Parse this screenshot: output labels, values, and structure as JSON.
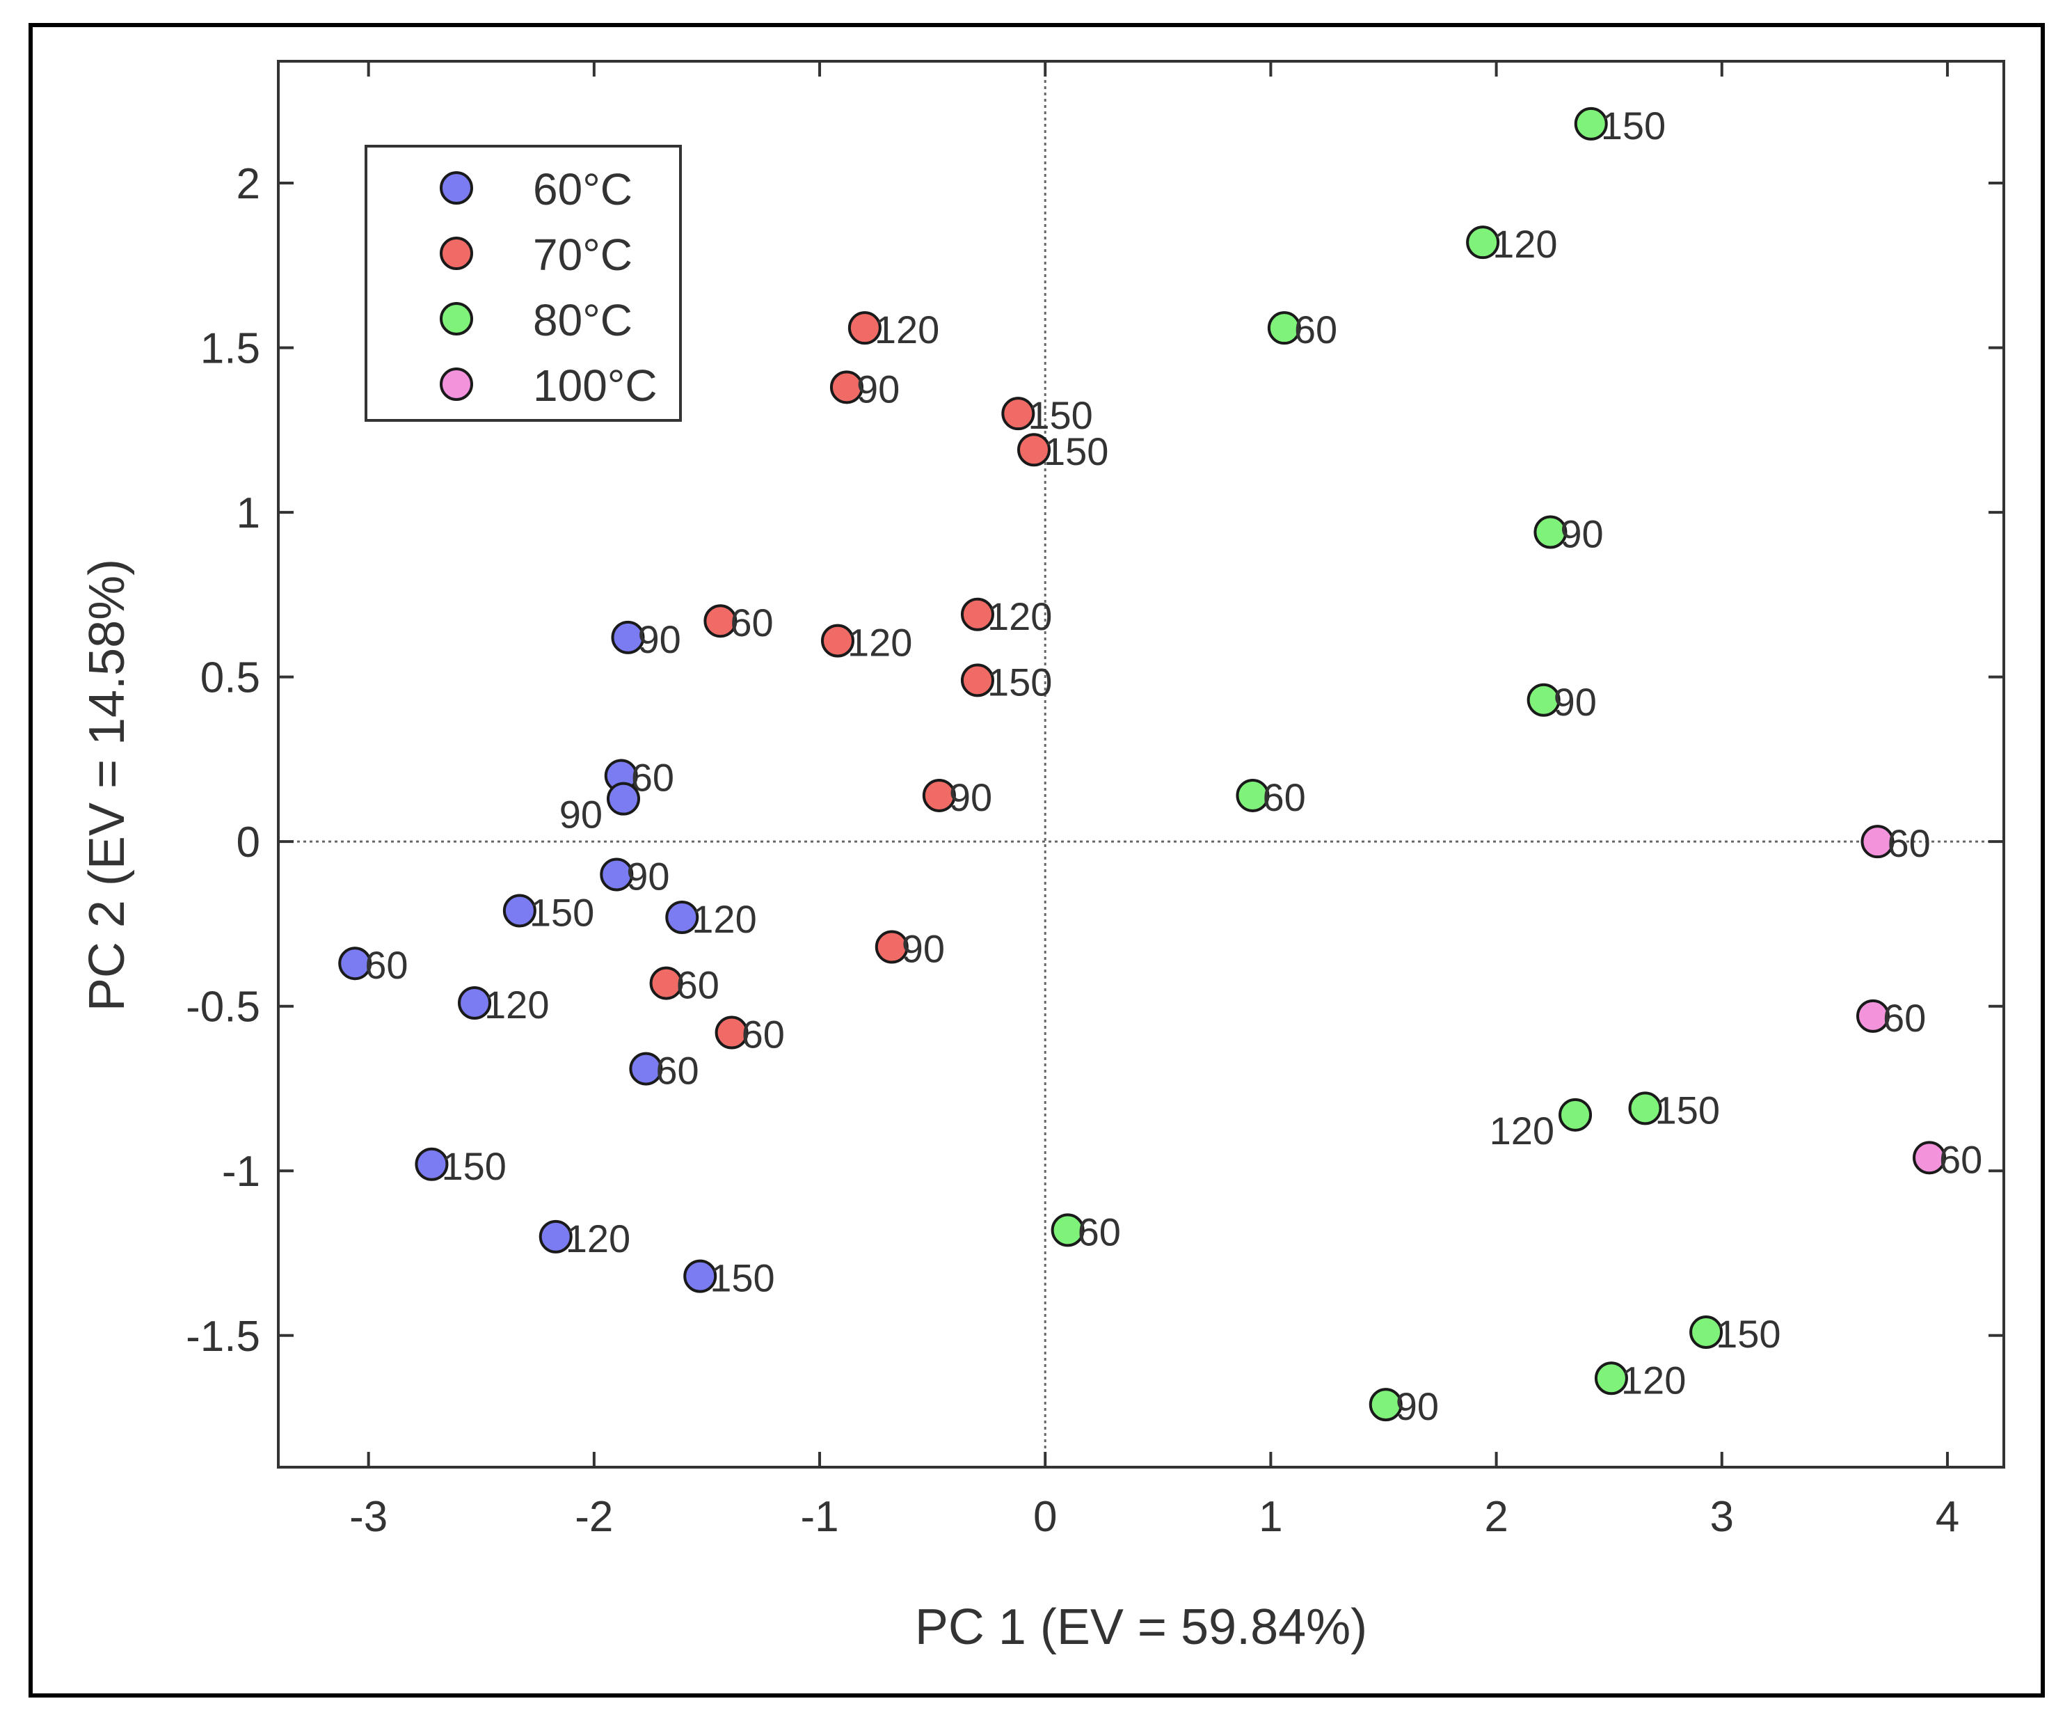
{
  "chart_data": {
    "type": "scatter",
    "xlabel": "PC 1 (EV = 59.84%)",
    "ylabel": "PC 2 (EV = 14.58%)",
    "xlim": [
      -3.4,
      4.25
    ],
    "ylim": [
      -1.9,
      2.37
    ],
    "xticks": [
      -3,
      -2,
      -1,
      0,
      1,
      2,
      3,
      4
    ],
    "yticks": [
      -1.5,
      -1,
      -0.5,
      0,
      0.5,
      1,
      1.5,
      2
    ],
    "xtick_labels": [
      "-3",
      "-2",
      "-1",
      "0",
      "1",
      "2",
      "3",
      "4"
    ],
    "ytick_labels": [
      "-1.5",
      "-1",
      "-0.5",
      "0",
      "0.5",
      "1",
      "1.5",
      "2"
    ],
    "legend_position": "top-left",
    "zero_lines": true,
    "series": [
      {
        "name": "60°C",
        "color": "#7b7bf2",
        "points": [
          {
            "x": -1.85,
            "y": 0.62,
            "label": "90"
          },
          {
            "x": -1.88,
            "y": 0.2,
            "label": "60"
          },
          {
            "x": -1.87,
            "y": 0.13,
            "label": "90"
          },
          {
            "x": -1.9,
            "y": -0.1,
            "label": "90"
          },
          {
            "x": -2.33,
            "y": -0.21,
            "label": "150"
          },
          {
            "x": -1.61,
            "y": -0.23,
            "label": "120"
          },
          {
            "x": -3.06,
            "y": -0.37,
            "label": "60"
          },
          {
            "x": -2.53,
            "y": -0.49,
            "label": "120"
          },
          {
            "x": -1.77,
            "y": -0.69,
            "label": "60"
          },
          {
            "x": -2.72,
            "y": -0.98,
            "label": "150"
          },
          {
            "x": -2.17,
            "y": -1.2,
            "label": "120"
          },
          {
            "x": -1.53,
            "y": -1.32,
            "label": "150"
          }
        ]
      },
      {
        "name": "70°C",
        "color": "#f06b65",
        "points": [
          {
            "x": -0.8,
            "y": 1.56,
            "label": "120"
          },
          {
            "x": -0.88,
            "y": 1.38,
            "label": "90"
          },
          {
            "x": -0.12,
            "y": 1.3,
            "label": "150"
          },
          {
            "x": -0.05,
            "y": 1.19,
            "label": "150"
          },
          {
            "x": -1.44,
            "y": 0.67,
            "label": "60"
          },
          {
            "x": -0.3,
            "y": 0.69,
            "label": "120"
          },
          {
            "x": -0.92,
            "y": 0.61,
            "label": "120"
          },
          {
            "x": -0.3,
            "y": 0.49,
            "label": "150"
          },
          {
            "x": -0.47,
            "y": 0.14,
            "label": "90"
          },
          {
            "x": -0.68,
            "y": -0.32,
            "label": "90"
          },
          {
            "x": -1.68,
            "y": -0.43,
            "label": "60"
          },
          {
            "x": -1.39,
            "y": -0.58,
            "label": "60"
          }
        ]
      },
      {
        "name": "80°C",
        "color": "#7ff27a",
        "points": [
          {
            "x": 2.42,
            "y": 2.18,
            "label": "150"
          },
          {
            "x": 1.94,
            "y": 1.82,
            "label": "120"
          },
          {
            "x": 1.06,
            "y": 1.56,
            "label": "60"
          },
          {
            "x": 2.24,
            "y": 0.94,
            "label": "90"
          },
          {
            "x": 2.21,
            "y": 0.43,
            "label": "90"
          },
          {
            "x": 0.92,
            "y": 0.14,
            "label": "60"
          },
          {
            "x": 2.35,
            "y": -0.83,
            "label": "120"
          },
          {
            "x": 2.66,
            "y": -0.81,
            "label": "150"
          },
          {
            "x": 0.1,
            "y": -1.18,
            "label": "60"
          },
          {
            "x": 2.93,
            "y": -1.49,
            "label": "150"
          },
          {
            "x": 2.51,
            "y": -1.63,
            "label": "120"
          },
          {
            "x": 1.51,
            "y": -1.71,
            "label": "90"
          }
        ]
      },
      {
        "name": "100°C",
        "color": "#f393dc",
        "points": [
          {
            "x": 3.69,
            "y": 0.0,
            "label": "60"
          },
          {
            "x": 3.67,
            "y": -0.53,
            "label": "60"
          },
          {
            "x": 3.92,
            "y": -0.96,
            "label": "60"
          }
        ]
      }
    ]
  }
}
